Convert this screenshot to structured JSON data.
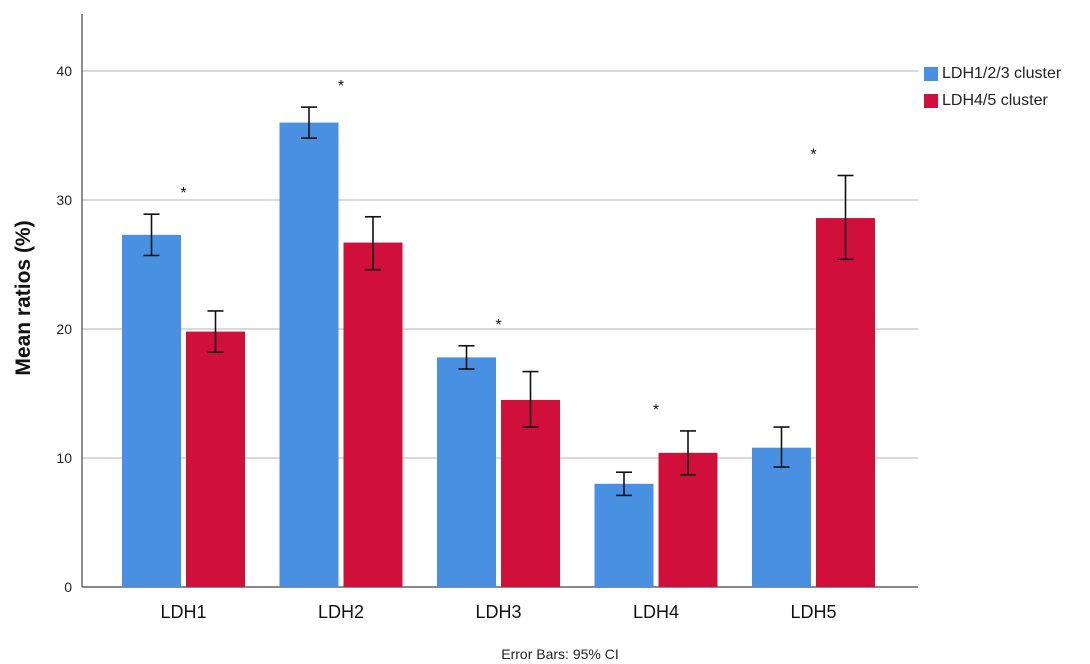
{
  "chart_data": {
    "type": "bar",
    "categories": [
      "LDH1",
      "LDH2",
      "LDH3",
      "LDH4",
      "LDH5"
    ],
    "series": [
      {
        "name": "LDH1/2/3 cluster",
        "color": "#4a90e2",
        "values": [
          27.3,
          36.0,
          17.8,
          8.0,
          10.8
        ],
        "ci_low": [
          25.7,
          34.8,
          16.9,
          7.1,
          9.3
        ],
        "ci_high": [
          28.9,
          37.2,
          18.7,
          8.9,
          12.4
        ]
      },
      {
        "name": "LDH4/5 cluster",
        "color": "#d0103a",
        "values": [
          19.8,
          26.7,
          14.5,
          10.4,
          28.6
        ],
        "ci_low": [
          18.2,
          24.6,
          12.4,
          8.7,
          25.4
        ],
        "ci_high": [
          21.4,
          28.7,
          16.7,
          12.1,
          31.9
        ]
      }
    ],
    "significance_marker": "*",
    "significant": [
      true,
      true,
      true,
      true,
      true
    ],
    "ylabel": "Mean ratios (%)",
    "xlabel": "",
    "yticks": [
      0,
      10,
      20,
      30,
      40
    ],
    "ylim": [
      0,
      44
    ],
    "grid": true,
    "legend_position": "top-right",
    "footer": "Error Bars: 95% CI"
  }
}
